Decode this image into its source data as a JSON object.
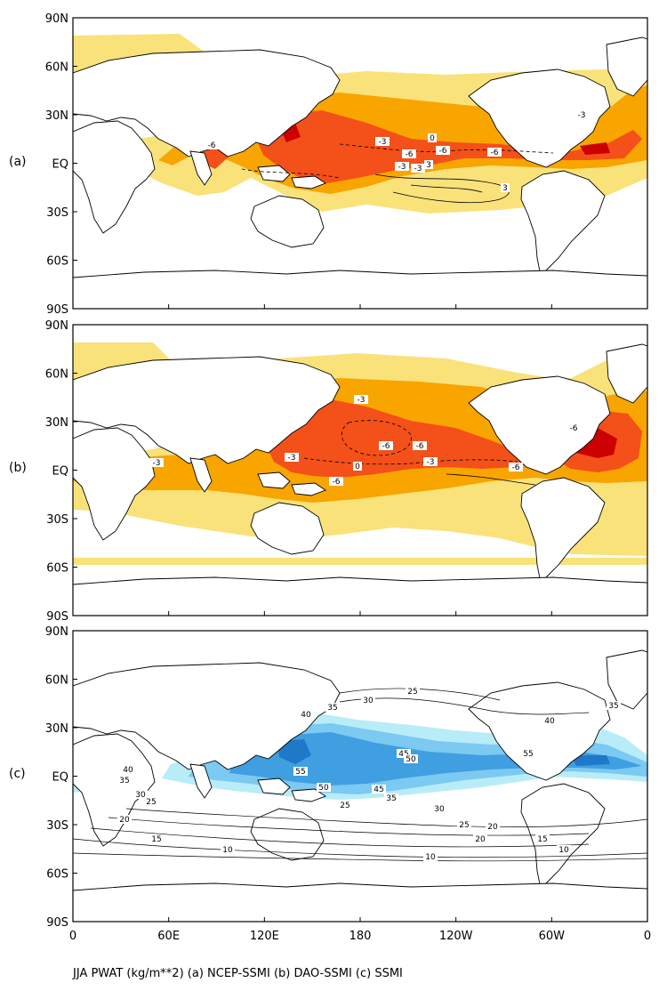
{
  "caption": "JJA PWAT (kg/m**2) (a) NCEP-SSMI (b) DAO-SSMI (c) SSMI",
  "lat_ticks": [
    "90N",
    "60N",
    "30N",
    "EQ",
    "30S",
    "60S",
    "90S"
  ],
  "lon_ticks": [
    "0",
    "60E",
    "120E",
    "180",
    "120W",
    "60W",
    "0"
  ],
  "colors": {
    "diff_levels": [
      "#f9e27a",
      "#f8a500",
      "#f4501a",
      "#cc0000"
    ],
    "abs_levels": [
      "#b9ecf9",
      "#7cc9f2",
      "#3f9fe0",
      "#1f78c8"
    ],
    "land_line": "#000000"
  },
  "panels": [
    {
      "label": "(a)",
      "kind": "difference",
      "contour_labels": [
        "-6",
        "-3",
        "-6",
        "-6",
        "-6",
        "-3",
        "-3",
        "-3",
        "0",
        "3",
        "3"
      ]
    },
    {
      "label": "(b)",
      "kind": "difference",
      "contour_labels": [
        "-3",
        "-6",
        "-6",
        "-6",
        "-3",
        "-3",
        "-3",
        "-6",
        "-6",
        "0"
      ]
    },
    {
      "label": "(c)",
      "kind": "absolute",
      "contour_labels": [
        "40",
        "35",
        "30",
        "25",
        "45",
        "50",
        "55",
        "40",
        "35",
        "30",
        "25",
        "20",
        "45",
        "50",
        "55",
        "40",
        "35",
        "25",
        "20",
        "15",
        "10",
        "35",
        "30",
        "25",
        "20",
        "15",
        "10",
        "10"
      ]
    }
  ]
}
